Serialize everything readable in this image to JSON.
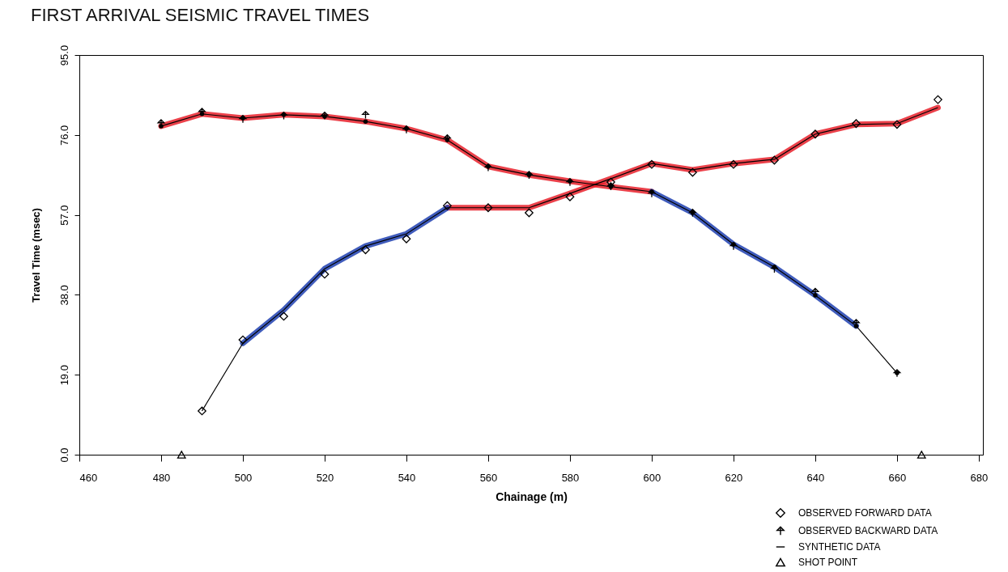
{
  "chart_data": {
    "type": "scatter",
    "title": "FIRST ARRIVAL SEISMIC TRAVEL TIMES",
    "xlabel": "Chainage (m)",
    "ylabel": "Travel Time (msec)",
    "xlim": [
      460,
      681
    ],
    "xticks": [
      460,
      480,
      500,
      520,
      540,
      560,
      580,
      600,
      620,
      640,
      660,
      680
    ],
    "ylim": [
      0,
      95
    ],
    "yticks": [
      {
        "value": 0,
        "label": "0.0"
      },
      {
        "value": 19,
        "label": "19.0"
      },
      {
        "value": 38,
        "label": "38.0"
      },
      {
        "value": 57,
        "label": "57.0"
      },
      {
        "value": 76,
        "label": "76.0"
      },
      {
        "value": 95,
        "label": "95.0"
      }
    ],
    "legend": "bottom right",
    "series": [
      {
        "name": "OBSERVED FORWARD DATA",
        "marker": "diamond",
        "color": "#000000",
        "x": [
          490,
          500,
          510,
          520,
          530,
          540,
          550,
          560,
          570,
          580,
          590,
          600,
          610,
          620,
          630,
          640,
          650,
          660,
          670
        ],
        "values": [
          10.4,
          27.3,
          32.9,
          42.9,
          48.7,
          51.3,
          59.2,
          58.7,
          57.5,
          61.3,
          64.8,
          69.0,
          67.1,
          69.0,
          70.0,
          76.2,
          78.7,
          78.5,
          84.4
        ]
      },
      {
        "name": "OBSERVED BACKWARD DATA",
        "marker": "cross",
        "color": "#000000",
        "x": [
          480,
          490,
          500,
          510,
          520,
          530,
          540,
          550,
          560,
          570,
          580,
          590,
          600,
          610,
          620,
          630,
          640,
          650,
          660
        ],
        "values": [
          78.8,
          81.5,
          79.8,
          80.6,
          80.6,
          80.8,
          77.3,
          75.2,
          68.3,
          66.5,
          64.8,
          63.8,
          62.1,
          57.5,
          49.6,
          44.2,
          38.7,
          31.3,
          19.4
        ]
      },
      {
        "type": "line",
        "color": "#e8202a",
        "x": [
          550,
          560,
          570,
          580,
          590,
          600,
          610,
          620,
          630,
          640,
          650,
          660,
          670
        ],
        "values": [
          58.7,
          58.7,
          58.7,
          62.1,
          65.6,
          69.2,
          67.7,
          69.2,
          70.2,
          76.2,
          78.5,
          78.7,
          82.5
        ]
      },
      {
        "type": "line",
        "color": "#1f3fb0",
        "x": [
          500,
          510,
          520,
          530,
          540,
          550
        ],
        "values": [
          26.5,
          34.4,
          44.2,
          49.6,
          52.5,
          58.7
        ]
      },
      {
        "type": "line",
        "color": "#e8202a",
        "x": [
          480,
          490,
          500,
          510,
          520,
          530,
          540,
          550,
          560,
          570,
          580,
          590,
          600
        ],
        "values": [
          78.1,
          81.0,
          80.0,
          80.8,
          80.4,
          79.2,
          77.5,
          74.8,
          68.5,
          66.5,
          65.0,
          63.7,
          62.5
        ]
      },
      {
        "type": "line",
        "color": "#1f3fb0",
        "x": [
          600,
          610,
          620,
          630,
          640,
          650
        ],
        "values": [
          62.5,
          57.5,
          50.0,
          44.6,
          37.9,
          30.6
        ]
      },
      {
        "name": "SYNTHETIC DATA",
        "type": "line",
        "marker": "none",
        "color": "#000000",
        "x": [
          490,
          500,
          510,
          520,
          530,
          540,
          550,
          560,
          570,
          580,
          590,
          600,
          610,
          620,
          630,
          640,
          650,
          660,
          670
        ],
        "values": [
          10.4,
          26.5,
          34.4,
          44.2,
          49.6,
          52.5,
          58.7,
          58.7,
          58.7,
          62.1,
          65.6,
          69.2,
          67.7,
          69.2,
          70.2,
          76.2,
          78.5,
          78.7,
          82.5
        ]
      },
      {
        "type": "line",
        "marker": "none",
        "color": "#000000",
        "x": [
          480,
          490,
          500,
          510,
          520,
          530,
          540,
          550,
          560,
          570,
          580,
          590,
          600,
          610,
          620,
          630,
          640,
          650,
          660
        ],
        "values": [
          78.1,
          81.0,
          80.0,
          80.8,
          80.4,
          79.2,
          77.5,
          74.8,
          68.5,
          66.5,
          65.0,
          63.7,
          62.5,
          57.5,
          50.0,
          44.6,
          37.9,
          30.6,
          19.4
        ]
      },
      {
        "name": "SHOT POINT",
        "marker": "triangle",
        "color": "#000000",
        "x": [
          485,
          666
        ],
        "values": [
          0,
          0
        ]
      }
    ]
  }
}
